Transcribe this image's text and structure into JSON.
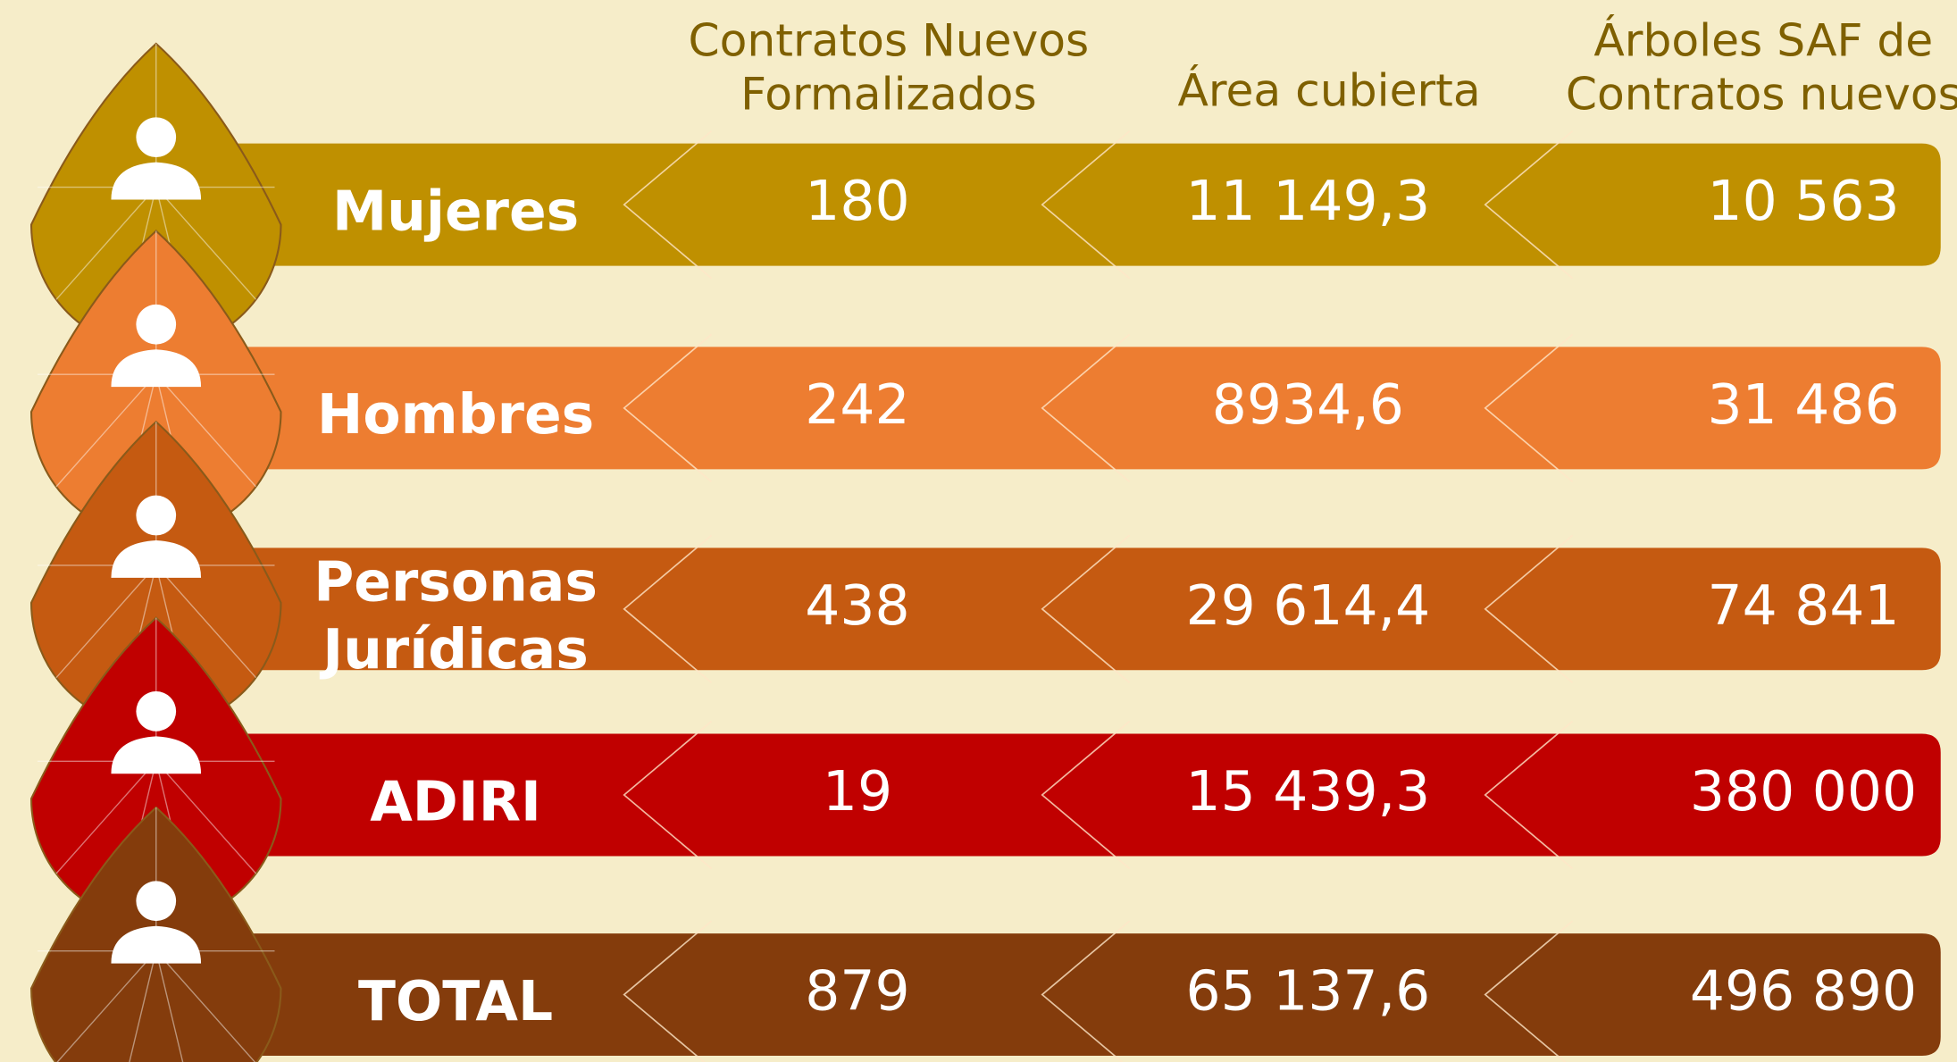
{
  "table": {
    "headers": [
      [
        "Contratos Nuevos",
        "Formalizados"
      ],
      [
        "Área cubierta"
      ],
      [
        "Árboles SAF de",
        "Contratos nuevos"
      ]
    ],
    "rows": [
      {
        "label": [
          "Mujeres"
        ],
        "values": [
          "180",
          "11 149,3",
          "10 563"
        ],
        "color": "#bf9000"
      },
      {
        "label": [
          "Hombres"
        ],
        "values": [
          "242",
          "8934,6",
          "31 486"
        ],
        "color": "#ed7d31"
      },
      {
        "label": [
          "Personas",
          "Jurídicas"
        ],
        "values": [
          "438",
          "29 614,4",
          "74 841"
        ],
        "color": "#c55a11"
      },
      {
        "label": [
          "ADIRI"
        ],
        "values": [
          "19",
          "15 439,3",
          "380 000"
        ],
        "color": "#c00000"
      },
      {
        "label": [
          "TOTAL"
        ],
        "values": [
          "879",
          "65 137,6",
          "496 890"
        ],
        "color": "#843c0c"
      }
    ]
  }
}
